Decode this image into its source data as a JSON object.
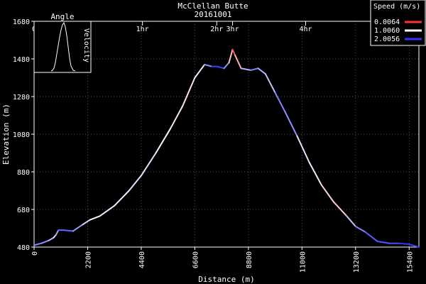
{
  "chart_data": {
    "type": "line",
    "title": "McClellan Butte",
    "subtitle": "20161001",
    "xlabel": "Distance (m)",
    "ylabel": "Elevation (m)",
    "xlim": [
      0,
      15800
    ],
    "ylim": [
      480,
      1680
    ],
    "x_ticks": [
      0,
      2200,
      4400,
      6600,
      8800,
      11000,
      13200,
      15400
    ],
    "x_tick_labels": [
      "0",
      "2200",
      "4400",
      "6600",
      "8800",
      "11000",
      "13200",
      "15400"
    ],
    "y_ticks": [
      480,
      680,
      880,
      1080,
      1280,
      1480,
      1680
    ],
    "y_tick_labels": [
      "480",
      "680",
      "880",
      "1080",
      "1280",
      "1480",
      "1680"
    ],
    "grid": true,
    "time_markers": [
      {
        "label": "0",
        "x": 0
      },
      {
        "label": "1hr",
        "x": 4450
      },
      {
        "label": "2hr",
        "x": 7500
      },
      {
        "label": "3hr",
        "x": 8150
      },
      {
        "label": "4hr",
        "x": 11150
      }
    ],
    "legend": {
      "title": "Speed (m/s)",
      "position": "top-right",
      "entries": [
        {
          "label": "0.0064",
          "color": "#ff3333"
        },
        {
          "label": "1.0060",
          "color": "#ffffff"
        },
        {
          "label": "2.0056",
          "color": "#3333ff"
        }
      ]
    },
    "inset": {
      "title": "Angle",
      "ylabel": "Velocity",
      "position": "top-left"
    },
    "series": [
      {
        "x": [
          0,
          300,
          600,
          800,
          900,
          1000,
          1100,
          1200,
          1600,
          2000,
          2300,
          2700,
          3300,
          3900,
          4400,
          5000,
          5600,
          6100,
          6600,
          7000,
          7300,
          7500,
          7800,
          8000,
          8150,
          8250,
          8500,
          8900,
          9200,
          9500,
          9900,
          10300,
          10800,
          11300,
          11800,
          12300,
          12800,
          13200,
          13600,
          14100,
          14600,
          15000,
          15400,
          15800
        ],
        "y": [
          490,
          500,
          515,
          530,
          545,
          570,
          570,
          570,
          565,
          600,
          625,
          645,
          700,
          780,
          860,
          980,
          1110,
          1230,
          1380,
          1450,
          1440,
          1440,
          1430,
          1460,
          1530,
          1500,
          1430,
          1420,
          1430,
          1400,
          1300,
          1200,
          1070,
          930,
          810,
          720,
          650,
          590,
          560,
          510,
          500,
          500,
          495,
          480
        ],
        "speed": [
          1.6,
          1.6,
          1.5,
          1.2,
          1.1,
          1.8,
          1.7,
          1.8,
          1.7,
          1.3,
          1.1,
          1.0,
          1.2,
          1.0,
          1.3,
          1.0,
          1.1,
          0.7,
          1.0,
          1.2,
          1.9,
          2.0,
          1.9,
          1.2,
          0.2,
          0.1,
          1.1,
          1.7,
          1.6,
          1.2,
          1.4,
          1.8,
          1.3,
          1.0,
          1.2,
          0.4,
          1.1,
          1.5,
          1.7,
          1.9,
          1.8,
          2.0,
          2.0,
          1.9
        ]
      }
    ]
  }
}
